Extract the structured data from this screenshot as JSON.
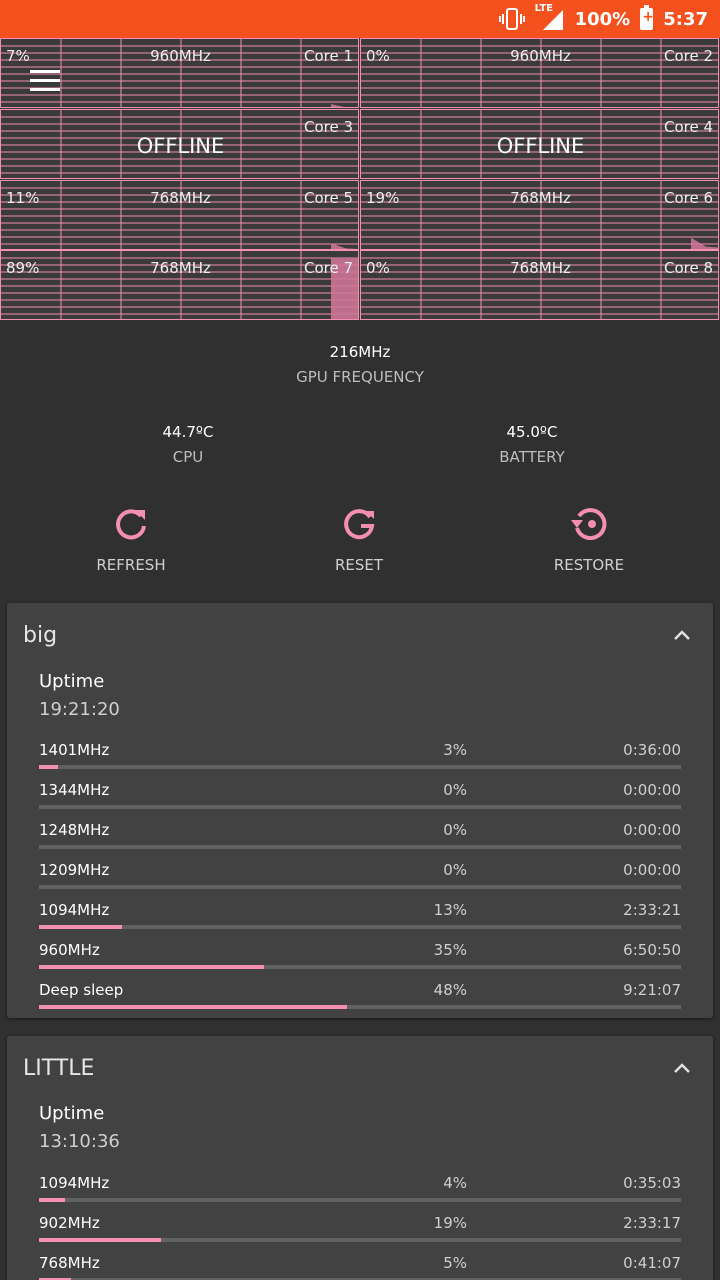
{
  "status_bar": {
    "network": "LTE",
    "battery": "100%",
    "time": "5:37"
  },
  "cores": [
    {
      "name": "Core 1",
      "load": "7%",
      "freq": "960MHz",
      "offline": false,
      "load_value": 7
    },
    {
      "name": "Core 2",
      "load": "0%",
      "freq": "960MHz",
      "offline": false,
      "load_value": 0
    },
    {
      "name": "Core 3",
      "offline": true,
      "status": "OFFLINE"
    },
    {
      "name": "Core 4",
      "offline": true,
      "status": "OFFLINE"
    },
    {
      "name": "Core 5",
      "load": "11%",
      "freq": "768MHz",
      "offline": false,
      "load_value": 11
    },
    {
      "name": "Core 6",
      "load": "19%",
      "freq": "768MHz",
      "offline": false,
      "load_value": 19
    },
    {
      "name": "Core 7",
      "load": "89%",
      "freq": "768MHz",
      "offline": false,
      "load_value": 89
    },
    {
      "name": "Core 8",
      "load": "0%",
      "freq": "768MHz",
      "offline": false,
      "load_value": 0
    }
  ],
  "gpu": {
    "value": "216MHz",
    "label": "GPU FREQUENCY"
  },
  "temps": {
    "cpu": {
      "value": "44.7ºC",
      "label": "CPU"
    },
    "battery": {
      "value": "45.0ºC",
      "label": "BATTERY"
    }
  },
  "actions": {
    "refresh": "REFRESH",
    "reset": "RESET",
    "restore": "RESTORE"
  },
  "clusters": [
    {
      "title": "big",
      "uptime_label": "Uptime",
      "uptime": "19:21:20",
      "states": [
        {
          "freq": "1401MHz",
          "pct": "3%",
          "time": "0:36:00",
          "value": 3
        },
        {
          "freq": "1344MHz",
          "pct": "0%",
          "time": "0:00:00",
          "value": 0
        },
        {
          "freq": "1248MHz",
          "pct": "0%",
          "time": "0:00:00",
          "value": 0
        },
        {
          "freq": "1209MHz",
          "pct": "0%",
          "time": "0:00:00",
          "value": 0
        },
        {
          "freq": "1094MHz",
          "pct": "13%",
          "time": "2:33:21",
          "value": 13
        },
        {
          "freq": "960MHz",
          "pct": "35%",
          "time": "6:50:50",
          "value": 35
        },
        {
          "freq": "Deep sleep",
          "pct": "48%",
          "time": "9:21:07",
          "value": 48
        }
      ]
    },
    {
      "title": "LITTLE",
      "uptime_label": "Uptime",
      "uptime": "13:10:36",
      "states": [
        {
          "freq": "1094MHz",
          "pct": "4%",
          "time": "0:35:03",
          "value": 4
        },
        {
          "freq": "902MHz",
          "pct": "19%",
          "time": "2:33:17",
          "value": 19
        },
        {
          "freq": "768MHz",
          "pct": "5%",
          "time": "0:41:07",
          "value": 5
        }
      ]
    }
  ],
  "colors": {
    "accent": "#f48fb1",
    "status_bar": "#f4511e",
    "background": "#303030",
    "card": "#424242"
  }
}
